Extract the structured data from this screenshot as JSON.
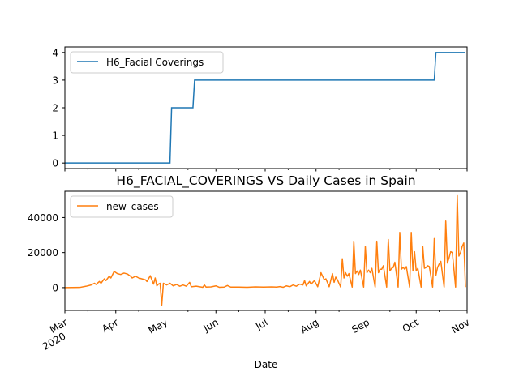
{
  "chart_data": [
    {
      "type": "line",
      "title": "",
      "xlabel": "",
      "ylabel": "",
      "ylim": [
        -0.2,
        4.2
      ],
      "yticks": [
        0,
        1,
        2,
        3,
        4
      ],
      "legend": "upper-left",
      "grid": false,
      "series": [
        {
          "name": "H6_Facial Coverings",
          "color": "#1f77b4",
          "points": [
            [
              "2020-03-01",
              0
            ],
            [
              "2020-05-04",
              0
            ],
            [
              "2020-05-05",
              2
            ],
            [
              "2020-05-18",
              2
            ],
            [
              "2020-05-19",
              3
            ],
            [
              "2020-10-12",
              3
            ],
            [
              "2020-10-13",
              4
            ],
            [
              "2020-10-31",
              4
            ]
          ]
        }
      ]
    },
    {
      "type": "line",
      "title": "H6_FACIAL_COVERINGS VS Daily Cases in Spain",
      "xlabel": "Date",
      "ylabel": "",
      "ylim": [
        -13000,
        55000
      ],
      "yticks": [
        0,
        20000,
        40000
      ],
      "ytick_labels": [
        "0",
        "20000",
        "40000"
      ],
      "legend": "upper-left",
      "grid": false,
      "x_ticks": [
        {
          "date": "2020-03-01",
          "label": "Mar",
          "sublabel": "2020"
        },
        {
          "date": "2020-04-01",
          "label": "Apr"
        },
        {
          "date": "2020-05-01",
          "label": "May"
        },
        {
          "date": "2020-06-01",
          "label": "Jun"
        },
        {
          "date": "2020-07-01",
          "label": "Jul"
        },
        {
          "date": "2020-08-01",
          "label": "Aug"
        },
        {
          "date": "2020-09-01",
          "label": "Sep"
        },
        {
          "date": "2020-10-01",
          "label": "Oct"
        },
        {
          "date": "2020-11-01",
          "label": "Nov"
        }
      ],
      "series": [
        {
          "name": "new_cases",
          "color": "#ff7f0e",
          "points": [
            [
              "2020-03-01",
              0
            ],
            [
              "2020-03-10",
              100
            ],
            [
              "2020-03-14",
              800
            ],
            [
              "2020-03-17",
              1500
            ],
            [
              "2020-03-19",
              2500
            ],
            [
              "2020-03-20",
              1800
            ],
            [
              "2020-03-22",
              3500
            ],
            [
              "2020-03-23",
              2500
            ],
            [
              "2020-03-25",
              5000
            ],
            [
              "2020-03-26",
              4000
            ],
            [
              "2020-03-28",
              6500
            ],
            [
              "2020-03-29",
              5500
            ],
            [
              "2020-03-31",
              9200
            ],
            [
              "2020-04-02",
              8000
            ],
            [
              "2020-04-04",
              7500
            ],
            [
              "2020-04-06",
              8300
            ],
            [
              "2020-04-08",
              7800
            ],
            [
              "2020-04-10",
              6500
            ],
            [
              "2020-04-11",
              5500
            ],
            [
              "2020-04-13",
              6500
            ],
            [
              "2020-04-15",
              5500
            ],
            [
              "2020-04-17",
              5000
            ],
            [
              "2020-04-19",
              4500
            ],
            [
              "2020-04-20",
              3500
            ],
            [
              "2020-04-22",
              6800
            ],
            [
              "2020-04-24",
              2000
            ],
            [
              "2020-04-25",
              5500
            ],
            [
              "2020-04-26",
              1000
            ],
            [
              "2020-04-27",
              2000
            ],
            [
              "2020-04-28",
              2500
            ],
            [
              "2020-04-29",
              -10000
            ],
            [
              "2020-04-30",
              2500
            ],
            [
              "2020-05-02",
              1500
            ],
            [
              "2020-05-04",
              2500
            ],
            [
              "2020-05-06",
              1000
            ],
            [
              "2020-05-08",
              1800
            ],
            [
              "2020-05-10",
              800
            ],
            [
              "2020-05-12",
              1500
            ],
            [
              "2020-05-14",
              800
            ],
            [
              "2020-05-16",
              3000
            ],
            [
              "2020-05-17",
              500
            ],
            [
              "2020-05-20",
              800
            ],
            [
              "2020-05-24",
              200
            ],
            [
              "2020-05-25",
              1500
            ],
            [
              "2020-05-26",
              300
            ],
            [
              "2020-05-29",
              400
            ],
            [
              "2020-06-01",
              1000
            ],
            [
              "2020-06-03",
              200
            ],
            [
              "2020-06-06",
              300
            ],
            [
              "2020-06-08",
              1200
            ],
            [
              "2020-06-10",
              300
            ],
            [
              "2020-06-15",
              300
            ],
            [
              "2020-06-20",
              200
            ],
            [
              "2020-06-25",
              400
            ],
            [
              "2020-06-30",
              300
            ],
            [
              "2020-07-05",
              400
            ],
            [
              "2020-07-08",
              300
            ],
            [
              "2020-07-10",
              600
            ],
            [
              "2020-07-12",
              200
            ],
            [
              "2020-07-14",
              1000
            ],
            [
              "2020-07-16",
              500
            ],
            [
              "2020-07-18",
              1500
            ],
            [
              "2020-07-20",
              800
            ],
            [
              "2020-07-22",
              2000
            ],
            [
              "2020-07-24",
              1500
            ],
            [
              "2020-07-25",
              4000
            ],
            [
              "2020-07-26",
              1000
            ],
            [
              "2020-07-28",
              3500
            ],
            [
              "2020-07-29",
              2000
            ],
            [
              "2020-07-31",
              4000
            ],
            [
              "2020-08-02",
              500
            ],
            [
              "2020-08-04",
              8500
            ],
            [
              "2020-08-06",
              4500
            ],
            [
              "2020-08-07",
              5000
            ],
            [
              "2020-08-09",
              500
            ],
            [
              "2020-08-11",
              8000
            ],
            [
              "2020-08-12",
              3000
            ],
            [
              "2020-08-13",
              6000
            ],
            [
              "2020-08-14",
              4500
            ],
            [
              "2020-08-16",
              300
            ],
            [
              "2020-08-17",
              16500
            ],
            [
              "2020-08-18",
              5500
            ],
            [
              "2020-08-19",
              8500
            ],
            [
              "2020-08-20",
              6500
            ],
            [
              "2020-08-21",
              8000
            ],
            [
              "2020-08-23",
              300
            ],
            [
              "2020-08-24",
              26500
            ],
            [
              "2020-08-25",
              8000
            ],
            [
              "2020-08-26",
              9500
            ],
            [
              "2020-08-27",
              7500
            ],
            [
              "2020-08-28",
              10000
            ],
            [
              "2020-08-30",
              300
            ],
            [
              "2020-08-31",
              23500
            ],
            [
              "2020-09-01",
              8500
            ],
            [
              "2020-09-02",
              10000
            ],
            [
              "2020-09-03",
              8500
            ],
            [
              "2020-09-04",
              11000
            ],
            [
              "2020-09-06",
              300
            ],
            [
              "2020-09-07",
              26500
            ],
            [
              "2020-09-08",
              8500
            ],
            [
              "2020-09-09",
              10500
            ],
            [
              "2020-09-10",
              10500
            ],
            [
              "2020-09-11",
              12500
            ],
            [
              "2020-09-13",
              300
            ],
            [
              "2020-09-14",
              27500
            ],
            [
              "2020-09-15",
              9500
            ],
            [
              "2020-09-16",
              11000
            ],
            [
              "2020-09-17",
              11500
            ],
            [
              "2020-09-18",
              14500
            ],
            [
              "2020-09-20",
              300
            ],
            [
              "2020-09-21",
              31500
            ],
            [
              "2020-09-22",
              10500
            ],
            [
              "2020-09-23",
              11500
            ],
            [
              "2020-09-24",
              10500
            ],
            [
              "2020-09-25",
              12000
            ],
            [
              "2020-09-27",
              300
            ],
            [
              "2020-09-28",
              31500
            ],
            [
              "2020-09-29",
              9500
            ],
            [
              "2020-09-30",
              20500
            ],
            [
              "2020-10-01",
              9500
            ],
            [
              "2020-10-02",
              11000
            ],
            [
              "2020-10-04",
              300
            ],
            [
              "2020-10-05",
              23500
            ],
            [
              "2020-10-06",
              11000
            ],
            [
              "2020-10-07",
              11500
            ],
            [
              "2020-10-08",
              12500
            ],
            [
              "2020-10-09",
              12000
            ],
            [
              "2020-10-11",
              300
            ],
            [
              "2020-10-12",
              28000
            ],
            [
              "2020-10-13",
              7000
            ],
            [
              "2020-10-14",
              11500
            ],
            [
              "2020-10-15",
              13500
            ],
            [
              "2020-10-16",
              15000
            ],
            [
              "2020-10-18",
              300
            ],
            [
              "2020-10-19",
              38000
            ],
            [
              "2020-10-20",
              14000
            ],
            [
              "2020-10-21",
              17000
            ],
            [
              "2020-10-22",
              20500
            ],
            [
              "2020-10-23",
              20000
            ],
            [
              "2020-10-25",
              300
            ],
            [
              "2020-10-26",
              52500
            ],
            [
              "2020-10-27",
              18000
            ],
            [
              "2020-10-28",
              20000
            ],
            [
              "2020-10-29",
              23500
            ],
            [
              "2020-10-30",
              25500
            ],
            [
              "2020-10-31",
              300
            ]
          ]
        }
      ]
    }
  ]
}
